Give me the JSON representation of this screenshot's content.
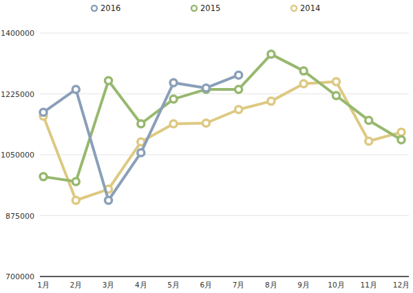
{
  "chart_data": {
    "type": "line",
    "categories": [
      "1月",
      "2月",
      "3月",
      "4月",
      "5月",
      "6月",
      "7月",
      "8月",
      "9月",
      "10月",
      "11月",
      "12月"
    ],
    "series": [
      {
        "name": "2016",
        "color": "#8a9fb8",
        "marker": "circle",
        "values": [
          1172000,
          1238000,
          919000,
          1056000,
          1257000,
          1242000,
          1279000,
          null,
          null,
          null,
          null,
          null
        ]
      },
      {
        "name": "2015",
        "color": "#97b86f",
        "marker": "circle",
        "values": [
          987000,
          973000,
          1263000,
          1139000,
          1210000,
          1238000,
          1238000,
          1339000,
          1291000,
          1220000,
          1149000,
          1093000
        ]
      },
      {
        "name": "2014",
        "color": "#ddc982",
        "marker": "circle",
        "values": [
          1161000,
          919000,
          951000,
          1087000,
          1139000,
          1141000,
          1180000,
          1204000,
          1254000,
          1260000,
          1089000,
          1115000
        ]
      }
    ],
    "ylim": [
      700000,
      1400000
    ],
    "yticks": [
      700000,
      875000,
      1050000,
      1225000,
      1400000
    ],
    "grid": true,
    "legend": "top"
  }
}
